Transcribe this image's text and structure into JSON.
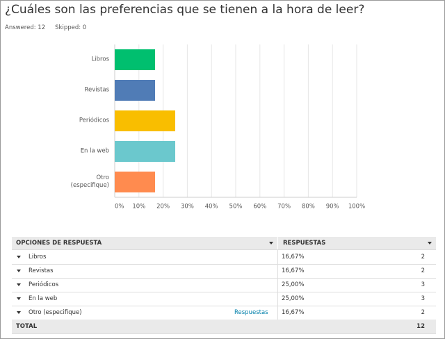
{
  "header": {
    "title": "¿Cuáles son las preferencias que se tienen a la hora de leer?",
    "answered": "Answered: 12",
    "skipped": "Skipped: 0"
  },
  "chart_data": {
    "type": "bar",
    "orientation": "horizontal",
    "categories": [
      "Libros",
      "Revistas",
      "Periódicos",
      "En la web",
      "Otro (especifique)"
    ],
    "values": [
      16.67,
      16.67,
      25,
      25,
      16.67
    ],
    "colors": [
      "#00bf6f",
      "#507cb6",
      "#f9be00",
      "#6bc8cd",
      "#ff8b4f"
    ],
    "xlim": [
      0,
      100
    ],
    "xticks": [
      {
        "value": 0,
        "label": "0%"
      },
      {
        "value": 10,
        "label": "10%"
      },
      {
        "value": 20,
        "label": "20%"
      },
      {
        "value": 30,
        "label": "30%"
      },
      {
        "value": 40,
        "label": "40%"
      },
      {
        "value": 50,
        "label": "50%"
      },
      {
        "value": 60,
        "label": "60%"
      },
      {
        "value": 70,
        "label": "70%"
      },
      {
        "value": 80,
        "label": "80%"
      },
      {
        "value": 90,
        "label": "90%"
      },
      {
        "value": 100,
        "label": "100%"
      }
    ],
    "grid": true
  },
  "table": {
    "columns": [
      "OPCIONES DE RESPUESTA",
      "RESPUESTAS"
    ],
    "rows": [
      [
        "Libros",
        "16,67%",
        2
      ],
      [
        "Revistas",
        "16,67%",
        2
      ],
      [
        "Periódicos",
        "25,00%",
        3
      ],
      [
        "En la web",
        "25,00%",
        3
      ],
      [
        "Otro (especifique)",
        "16,67%",
        2
      ]
    ],
    "link": "Respuestas",
    "link_row": 4,
    "total": [
      "TOTAL",
      12
    ]
  }
}
